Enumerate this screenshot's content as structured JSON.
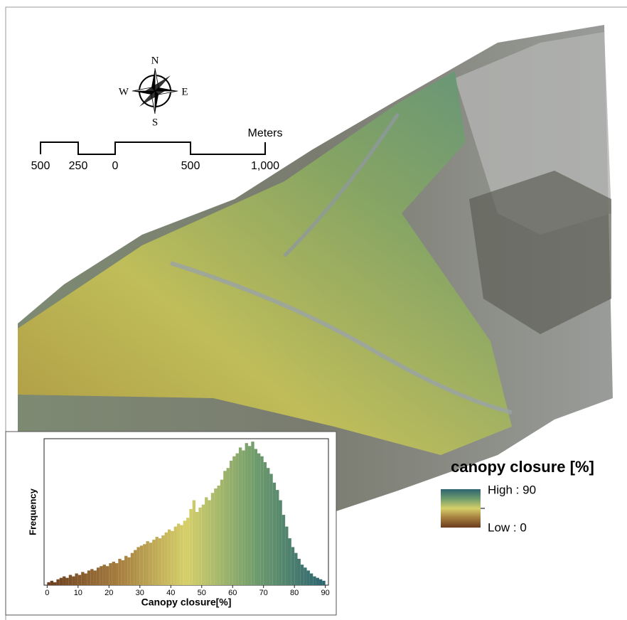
{
  "compass": {
    "n": "N",
    "s": "S",
    "e": "E",
    "w": "W"
  },
  "scale_bar": {
    "unit": "Meters",
    "labels": [
      "500",
      "250",
      "0",
      "500",
      "1,000"
    ]
  },
  "legend": {
    "title": "canopy closure [%]",
    "high": "High : 90",
    "low": "Low : 0"
  },
  "chart_data": {
    "type": "histogram",
    "x_label": "Canopy closure[%]",
    "y_label": "Frequency",
    "bins": [
      0,
      1,
      2,
      3,
      4,
      5,
      6,
      7,
      8,
      9,
      10,
      11,
      12,
      13,
      14,
      15,
      16,
      17,
      18,
      19,
      20,
      21,
      22,
      23,
      24,
      25,
      26,
      27,
      28,
      29,
      30,
      31,
      32,
      33,
      34,
      35,
      36,
      37,
      38,
      39,
      40,
      41,
      42,
      43,
      44,
      45,
      46,
      47,
      48,
      49,
      50,
      51,
      52,
      53,
      54,
      55,
      56,
      57,
      58,
      59,
      60,
      61,
      62,
      63,
      64,
      65,
      66,
      67,
      68,
      69,
      70,
      71,
      72,
      73,
      74,
      75,
      76,
      77,
      78,
      79,
      80,
      81,
      82,
      83,
      84,
      85,
      86,
      87,
      88,
      89,
      90
    ],
    "values": [
      2,
      3,
      2,
      4,
      5,
      6,
      5,
      7,
      6,
      8,
      7,
      9,
      8,
      10,
      11,
      10,
      12,
      13,
      14,
      13,
      15,
      16,
      15,
      18,
      17,
      20,
      19,
      22,
      24,
      26,
      27,
      28,
      30,
      29,
      31,
      33,
      32,
      34,
      36,
      38,
      37,
      40,
      42,
      41,
      44,
      46,
      52,
      58,
      50,
      53,
      55,
      60,
      58,
      63,
      66,
      68,
      72,
      78,
      80,
      85,
      88,
      90,
      94,
      92,
      97,
      95,
      98,
      93,
      90,
      88,
      84,
      80,
      76,
      70,
      65,
      58,
      48,
      40,
      32,
      26,
      22,
      18,
      14,
      12,
      10,
      8,
      6,
      5,
      4,
      3
    ],
    "colors": [
      "#6b3d1e",
      "#a47c3e",
      "#d6d06a",
      "#6f9c6c",
      "#2c6470"
    ],
    "xlim": [
      -1,
      91
    ],
    "ylim": [
      0,
      100
    ],
    "xticks": [
      0,
      10,
      20,
      30,
      40,
      50,
      60,
      70,
      80,
      90
    ]
  }
}
